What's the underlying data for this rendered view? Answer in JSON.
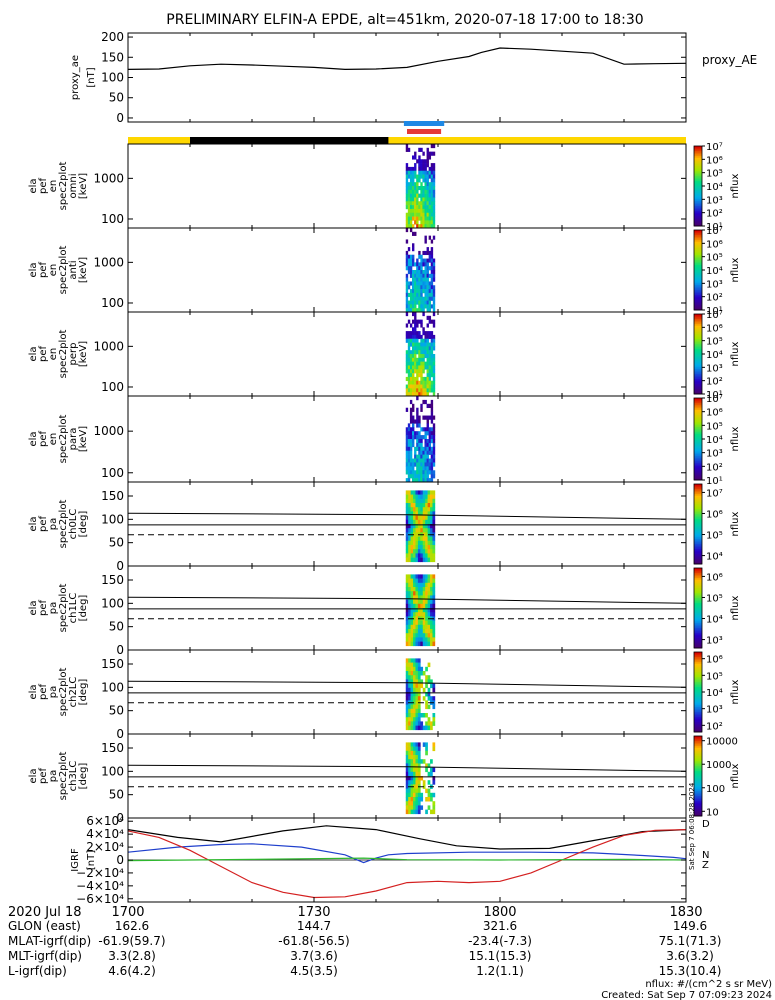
{
  "title": "PRELIMINARY ELFIN-A EPDE, alt=451km, 2020-07-18 17:00 to 18:30",
  "colors": {
    "state_yellow": "#ffd700",
    "state_black": "#000000",
    "bar_blue": "#1e88e5",
    "bar_red": "#e53935",
    "igrf_x": "#000000",
    "igrf_y": "#1f3fcc",
    "igrf_z": "#d42020",
    "igrf_extra": "#2eb82e"
  },
  "chart_data": [
    {
      "id": "proxy_ae",
      "type": "line",
      "ylabel_lines": [
        "proxy_ae",
        "[nT]"
      ],
      "legend": "proxy_AE",
      "ylim": [
        -10,
        210
      ],
      "yticks": [
        "0",
        "50",
        "100",
        "150",
        "200"
      ],
      "ytick_values": [
        0,
        50,
        100,
        150,
        200
      ],
      "xlim": [
        0,
        90
      ],
      "x": [
        0,
        5,
        10,
        15,
        20,
        25,
        30,
        35,
        40,
        45,
        50,
        55,
        57,
        60,
        65,
        70,
        75,
        80,
        85,
        90
      ],
      "y": [
        120,
        121,
        129,
        133,
        131,
        128,
        125,
        120,
        121,
        125,
        140,
        152,
        162,
        173,
        170,
        165,
        160,
        133,
        134,
        135
      ]
    },
    {
      "id": "bars",
      "type": "timeline",
      "note": "blue and red bars mark the science zone; yellow/black strip is spacecraft state",
      "blue_range": [
        44.5,
        51
      ],
      "red_range": [
        45,
        50.5
      ],
      "black_range": [
        10,
        42
      ]
    },
    {
      "id": "spec_en_omni",
      "type": "heatmap",
      "ylabel_lines": [
        "ela",
        "pef",
        "en",
        "spec2plot",
        "omni",
        "[keV]"
      ],
      "yaxis": "log",
      "ylim": [
        60,
        7000
      ],
      "yticks": [
        "1000",
        "100"
      ],
      "ytick_values": [
        1000,
        100
      ],
      "cb_label": "nflux",
      "cb_ticks": [
        "10⁷",
        "10⁶",
        "10⁵",
        "10⁴",
        "10³",
        "10²",
        "10¹"
      ],
      "cb_tick_values": [
        7,
        6,
        5,
        4,
        3,
        2,
        1
      ],
      "cb_range": [
        1,
        7
      ],
      "data_x": [
        44.8,
        49.5
      ],
      "intensity": 0.9
    },
    {
      "id": "spec_en_anti",
      "type": "heatmap",
      "ylabel_lines": [
        "ela",
        "pef",
        "en",
        "spec2plot",
        "anti",
        "[keV]"
      ],
      "yaxis": "log",
      "ylim": [
        60,
        7000
      ],
      "yticks": [
        "1000",
        "100"
      ],
      "ytick_values": [
        1000,
        100
      ],
      "cb_label": "nflux",
      "cb_ticks": [
        "10⁷",
        "10⁶",
        "10⁵",
        "10⁴",
        "10³",
        "10²",
        "10¹"
      ],
      "cb_tick_values": [
        7,
        6,
        5,
        4,
        3,
        2,
        1
      ],
      "cb_range": [
        1,
        7
      ],
      "data_x": [
        44.8,
        49.5
      ],
      "intensity": 0.55
    },
    {
      "id": "spec_en_perp",
      "type": "heatmap",
      "ylabel_lines": [
        "ela",
        "pef",
        "en",
        "spec2plot",
        "perp",
        "[keV]"
      ],
      "yaxis": "log",
      "ylim": [
        60,
        7000
      ],
      "yticks": [
        "1000",
        "100"
      ],
      "ytick_values": [
        1000,
        100
      ],
      "cb_label": "nflux",
      "cb_ticks": [
        "10⁷",
        "10⁶",
        "10⁵",
        "10⁴",
        "10³",
        "10²",
        "10¹"
      ],
      "cb_tick_values": [
        7,
        6,
        5,
        4,
        3,
        2,
        1
      ],
      "cb_range": [
        1,
        7
      ],
      "data_x": [
        44.8,
        49.5
      ],
      "intensity": 0.95
    },
    {
      "id": "spec_en_para",
      "type": "heatmap",
      "ylabel_lines": [
        "ela",
        "pef",
        "en",
        "spec2plot",
        "para",
        "[keV]"
      ],
      "yaxis": "log",
      "ylim": [
        60,
        7000
      ],
      "yticks": [
        "1000",
        "100"
      ],
      "ytick_values": [
        1000,
        100
      ],
      "cb_label": "nflux",
      "cb_ticks": [
        "10⁷",
        "10⁶",
        "10⁵",
        "10⁴",
        "10³",
        "10²",
        "10¹"
      ],
      "cb_tick_values": [
        7,
        6,
        5,
        4,
        3,
        2,
        1
      ],
      "cb_range": [
        1,
        7
      ],
      "data_x": [
        44.8,
        49.5
      ],
      "intensity": 0.5
    },
    {
      "id": "pa_ch0",
      "type": "heatmap",
      "ylabel_lines": [
        "ela",
        "pef",
        "pa",
        "spec2plot",
        "ch0LC",
        "[deg]"
      ],
      "ylim": [
        0,
        180
      ],
      "yticks": [
        "150",
        "100",
        "50",
        "0"
      ],
      "ytick_values": [
        150,
        100,
        50,
        0
      ],
      "cb_label": "nflux",
      "cb_ticks": [
        "10⁷",
        "10⁶",
        "10⁵",
        "10⁴"
      ],
      "cb_tick_values": [
        7,
        6,
        5,
        4
      ],
      "cb_range": [
        3.6,
        7.4
      ],
      "data_x": [
        44.8,
        49.5
      ],
      "lc_upper": [
        [
          0,
          113
        ],
        [
          45,
          110
        ],
        [
          90,
          100
        ]
      ],
      "lc_mid": [
        [
          0,
          88
        ],
        [
          45,
          88
        ],
        [
          90,
          88
        ]
      ],
      "lc_lower": [
        [
          0,
          67
        ],
        [
          90,
          67
        ]
      ]
    },
    {
      "id": "pa_ch1",
      "type": "heatmap",
      "ylabel_lines": [
        "ela",
        "pef",
        "pa",
        "spec2plot",
        "ch1LC",
        "[deg]"
      ],
      "ylim": [
        0,
        180
      ],
      "yticks": [
        "150",
        "100",
        "50",
        "0"
      ],
      "ytick_values": [
        150,
        100,
        50,
        0
      ],
      "cb_label": "nflux",
      "cb_ticks": [
        "10⁶",
        "10⁵",
        "10⁴",
        "10³"
      ],
      "cb_tick_values": [
        6,
        5,
        4,
        3
      ],
      "cb_range": [
        2.6,
        6.4
      ],
      "data_x": [
        44.8,
        49.5
      ],
      "lc_upper": [
        [
          0,
          113
        ],
        [
          45,
          110
        ],
        [
          90,
          100
        ]
      ],
      "lc_mid": [
        [
          0,
          88
        ],
        [
          45,
          88
        ],
        [
          90,
          88
        ]
      ],
      "lc_lower": [
        [
          0,
          67
        ],
        [
          90,
          67
        ]
      ]
    },
    {
      "id": "pa_ch2",
      "type": "heatmap",
      "ylabel_lines": [
        "ela",
        "pef",
        "pa",
        "spec2plot",
        "ch2LC",
        "[deg]"
      ],
      "ylim": [
        0,
        180
      ],
      "yticks": [
        "150",
        "100",
        "50",
        "0"
      ],
      "ytick_values": [
        150,
        100,
        50,
        0
      ],
      "cb_label": "nflux",
      "cb_ticks": [
        "10⁶",
        "10⁵",
        "10⁴",
        "10³",
        "10²"
      ],
      "cb_tick_values": [
        6,
        5,
        4,
        3,
        2
      ],
      "cb_range": [
        1.6,
        6.4
      ],
      "data_x": [
        44.8,
        49.5
      ],
      "lc_upper": [
        [
          0,
          113
        ],
        [
          45,
          110
        ],
        [
          90,
          100
        ]
      ],
      "lc_mid": [
        [
          0,
          88
        ],
        [
          45,
          88
        ],
        [
          90,
          88
        ]
      ],
      "lc_lower": [
        [
          0,
          67
        ],
        [
          90,
          67
        ]
      ]
    },
    {
      "id": "pa_ch3",
      "type": "heatmap",
      "ylabel_lines": [
        "ela",
        "pef",
        "pa",
        "spec2plot",
        "ch3LC",
        "[deg]"
      ],
      "ylim": [
        0,
        180
      ],
      "yticks": [
        "150",
        "100",
        "50",
        "0"
      ],
      "ytick_values": [
        150,
        100,
        50,
        0
      ],
      "cb_label": "nflux",
      "cb_ticks": [
        "10000",
        "1000",
        "100",
        "10"
      ],
      "cb_tick_values": [
        4,
        3,
        2,
        1
      ],
      "cb_range": [
        0.8,
        4.2
      ],
      "data_x": [
        44.8,
        49.5
      ],
      "lc_upper": [
        [
          0,
          113
        ],
        [
          45,
          110
        ],
        [
          90,
          100
        ]
      ],
      "lc_mid": [
        [
          0,
          88
        ],
        [
          45,
          88
        ],
        [
          90,
          88
        ]
      ],
      "lc_lower": [
        [
          0,
          67
        ],
        [
          90,
          67
        ]
      ]
    },
    {
      "id": "igrf",
      "type": "line",
      "ylabel_lines": [
        "IGRF",
        "[nT]"
      ],
      "ylim": [
        -65000,
        65000
      ],
      "yticks": [
        "6×10⁴",
        "4×10⁴",
        "2×10⁴",
        "0",
        "−2×10⁴",
        "−4×10⁴",
        "−6×10⁴"
      ],
      "ytick_values": [
        60000,
        40000,
        20000,
        0,
        -20000,
        -40000,
        -60000
      ],
      "legend_labels": [
        "D",
        "N",
        "Z"
      ],
      "series": [
        {
          "x": [
            0,
            8,
            15,
            25,
            32,
            40,
            47,
            53,
            60,
            68,
            75,
            83,
            90
          ],
          "y": [
            47000,
            35000,
            28000,
            45000,
            53000,
            47000,
            33000,
            22000,
            17000,
            18000,
            30000,
            44000,
            47000
          ]
        },
        {
          "x": [
            0,
            8,
            15,
            20,
            28,
            35,
            38,
            40,
            42,
            45,
            55,
            65,
            75,
            83,
            88,
            90
          ],
          "y": [
            12000,
            20000,
            24000,
            25000,
            20000,
            8000,
            -4000,
            3000,
            8000,
            10000,
            12000,
            12000,
            11000,
            7000,
            4000,
            2000
          ]
        },
        {
          "x": [
            0,
            5,
            10,
            15,
            20,
            25,
            30,
            35,
            40,
            45,
            50,
            55,
            60,
            65,
            70,
            75,
            80,
            85,
            90
          ],
          "y": [
            45000,
            35000,
            15000,
            -10000,
            -35000,
            -50000,
            -58000,
            -57000,
            -48000,
            -35000,
            -33000,
            -35000,
            -33000,
            -20000,
            0,
            20000,
            38000,
            46000,
            47000
          ]
        },
        {
          "x": [
            0,
            20,
            38,
            45,
            60,
            80,
            90
          ],
          "y": [
            -1000,
            1000,
            3000,
            500,
            0,
            1000,
            0
          ]
        }
      ]
    }
  ],
  "time_axis": {
    "label": "2020 Jul 18",
    "ticks": [
      "1700",
      "1730",
      "1800",
      "1830"
    ],
    "tick_values": [
      0,
      30,
      60,
      90
    ]
  },
  "info_rows": [
    {
      "label": "GLON (east)",
      "values": [
        "162.6",
        "144.7",
        "321.6",
        "149.6"
      ]
    },
    {
      "label": "MLAT-igrf(dip)",
      "values": [
        "-61.9(59.7)",
        "-61.8(-56.5)",
        "-23.4(-7.3)",
        "75.1(71.3)"
      ]
    },
    {
      "label": "MLT-igrf(dip)",
      "values": [
        "3.3(2.8)",
        "3.7(3.6)",
        "15.1(15.3)",
        "3.6(3.2)"
      ]
    },
    {
      "label": "L-igrf(dip)",
      "values": [
        "4.6(4.2)",
        "4.5(3.5)",
        "1.2(1.1)",
        "15.3(10.4)"
      ]
    }
  ],
  "footer": {
    "units": "nflux: #/(cm^2 s sr MeV)",
    "created": "Created: Sat Sep  7 07:09:23 2024"
  },
  "side_stamp": "Sat Sep  7 06:08:28 2024"
}
